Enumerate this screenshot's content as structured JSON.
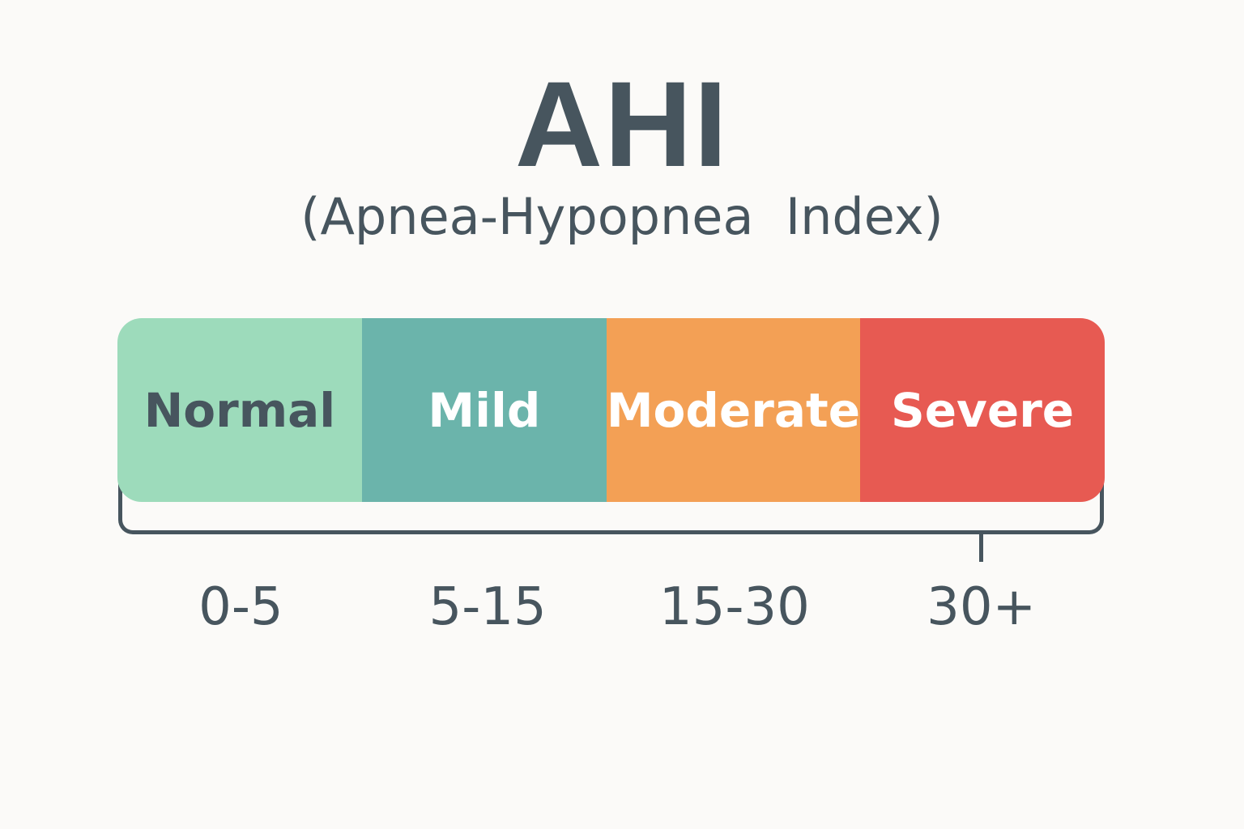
{
  "title": "AHI",
  "subtitle": "(Apnea-Hypopnea  Index)",
  "categories": [
    {
      "label": "Normal",
      "range": "0-5",
      "color": "#9ddbbb",
      "text_color": "#47555e"
    },
    {
      "label": "Mild",
      "range": "5-15",
      "color": "#6bb4ab",
      "text_color": "#ffffff"
    },
    {
      "label": "Moderate",
      "range": "15-30",
      "color": "#f3a055",
      "text_color": "#ffffff"
    },
    {
      "label": "Severe",
      "range": "30+",
      "color": "#e75a52",
      "text_color": "#ffffff"
    }
  ]
}
